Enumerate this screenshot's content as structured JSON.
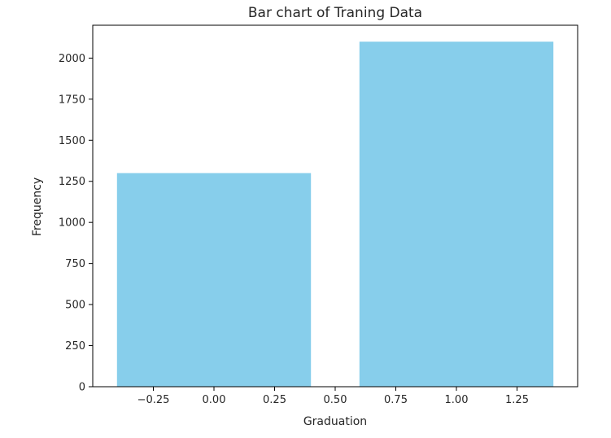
{
  "chart_data": {
    "type": "bar",
    "title": "Bar chart of Traning Data",
    "xlabel": "Graduation",
    "ylabel": "Frequency",
    "bar_color": "#87CEEB",
    "bar_width": 0.8,
    "x": [
      0,
      1
    ],
    "values": [
      1300,
      2100
    ],
    "xlim": [
      -0.5,
      1.5
    ],
    "ylim": [
      0,
      2200
    ],
    "x_ticks": [
      {
        "value": -0.25,
        "label": "−0.25"
      },
      {
        "value": 0.0,
        "label": "0.00"
      },
      {
        "value": 0.25,
        "label": "0.25"
      },
      {
        "value": 0.5,
        "label": "0.50"
      },
      {
        "value": 0.75,
        "label": "0.75"
      },
      {
        "value": 1.0,
        "label": "1.00"
      },
      {
        "value": 1.25,
        "label": "1.25"
      }
    ],
    "y_ticks": [
      {
        "value": 0,
        "label": "0"
      },
      {
        "value": 250,
        "label": "250"
      },
      {
        "value": 500,
        "label": "500"
      },
      {
        "value": 750,
        "label": "750"
      },
      {
        "value": 1000,
        "label": "1000"
      },
      {
        "value": 1250,
        "label": "1250"
      },
      {
        "value": 1500,
        "label": "1500"
      },
      {
        "value": 1750,
        "label": "1750"
      },
      {
        "value": 2000,
        "label": "2000"
      }
    ],
    "grid": false,
    "legend": "none"
  }
}
